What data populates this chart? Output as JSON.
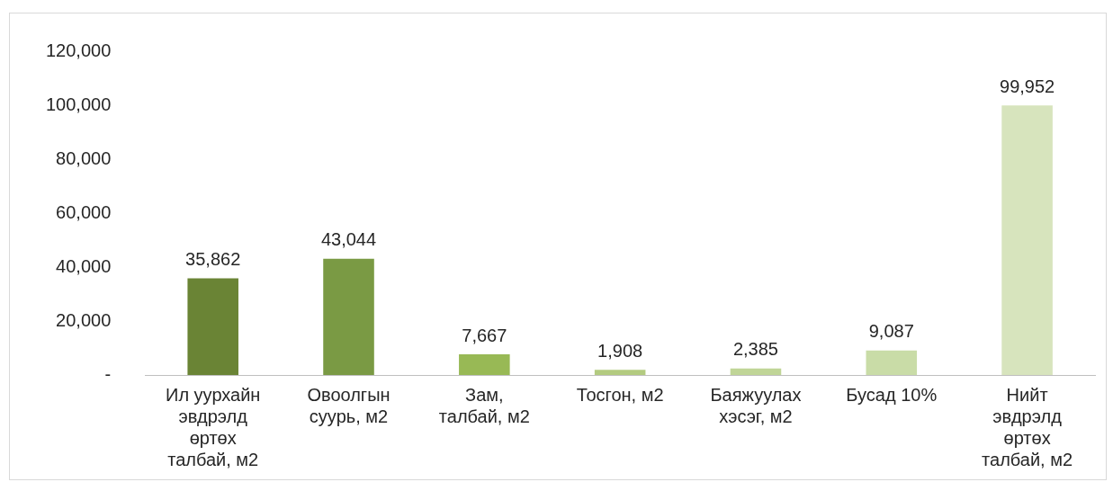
{
  "chart_data": {
    "type": "bar",
    "categories": [
      "Ил уурхайн эвдрэлд өртөх талбай, м2",
      "Овоолгын суурь, м2",
      "Зам, талбай, м2",
      "Тосгон, м2",
      "Баяжуулах хэсэг, м2",
      "Бусад 10%",
      "Нийт эвдрэлд өртөх талбай, м2"
    ],
    "values": [
      35862,
      43044,
      7667,
      1908,
      2385,
      9087,
      99952
    ],
    "colors": [
      "#6a8435",
      "#7a9a44",
      "#98b955",
      "#b3cb80",
      "#c0d597",
      "#c9dca7",
      "#d7e4bd"
    ],
    "value_labels": [
      "35,862",
      "43,044",
      "7,667",
      "1,908",
      "2,385",
      "9,087",
      "99,952"
    ],
    "ylim": [
      0,
      120000
    ],
    "yticks": [
      {
        "value": 0,
        "label": "-"
      },
      {
        "value": 20000,
        "label": "20,000"
      },
      {
        "value": 40000,
        "label": "40,000"
      },
      {
        "value": 60000,
        "label": "60,000"
      },
      {
        "value": 80000,
        "label": "80,000"
      },
      {
        "value": 100000,
        "label": "100,000"
      },
      {
        "value": 120000,
        "label": "120,000"
      }
    ],
    "grid": false,
    "legend": false
  }
}
